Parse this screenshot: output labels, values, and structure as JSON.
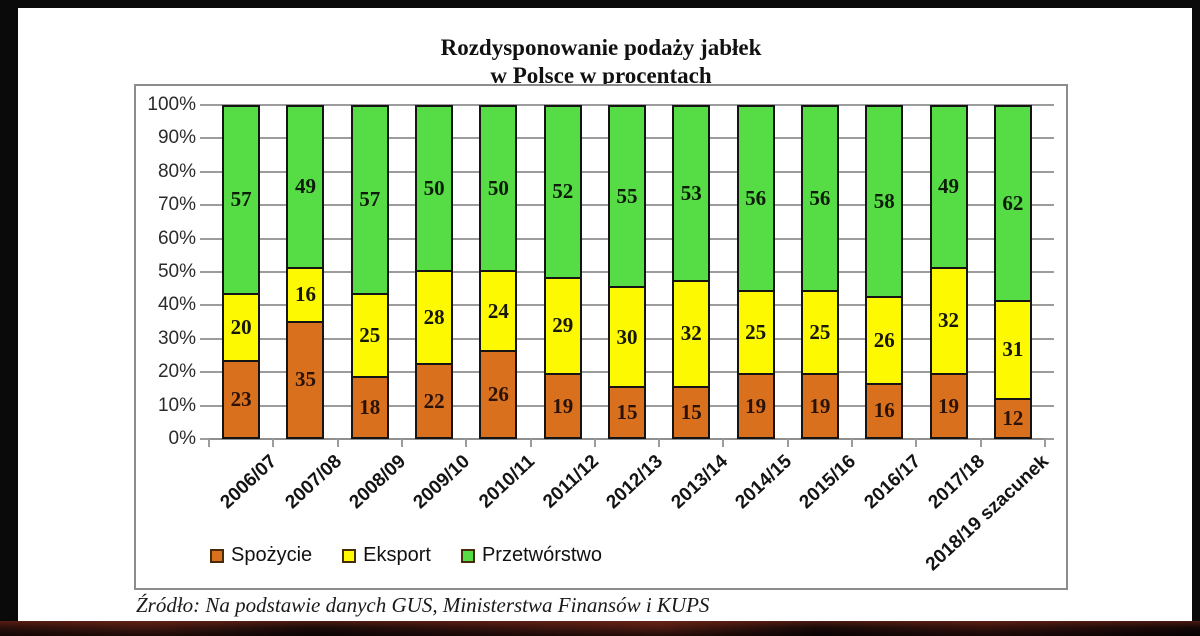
{
  "page": {
    "source": "Źródło: Na podstawie danych GUS, Ministerstwa Finansów i KUPS"
  },
  "chart_data": {
    "type": "bar",
    "stacked": true,
    "title": "Rozdysponowanie podaży jabłek",
    "subtitle": "w Polsce w procentach",
    "categories": [
      "2006/07",
      "2007/08",
      "2008/09",
      "2009/10",
      "2010/11",
      "2011/12",
      "2012/13",
      "2013/14",
      "2014/15",
      "2015/16",
      "2016/17",
      "2017/18",
      "2018/19 szacunek"
    ],
    "series": [
      {
        "name": "Spożycie",
        "color": "#d8701e",
        "label_color": "#2a1206",
        "values": [
          23,
          35,
          18,
          22,
          26,
          19,
          15,
          15,
          19,
          19,
          16,
          19,
          12
        ]
      },
      {
        "name": "Eksport",
        "color": "#fdf900",
        "label_color": "#171705",
        "values": [
          20,
          16,
          25,
          28,
          24,
          29,
          30,
          32,
          25,
          25,
          26,
          32,
          31
        ]
      },
      {
        "name": "Przetwórstwo",
        "color": "#56dc45",
        "label_color": "#0c1c08",
        "values": [
          57,
          49,
          57,
          50,
          50,
          52,
          55,
          53,
          56,
          56,
          58,
          49,
          62
        ]
      }
    ],
    "y_ticks": [
      "0%",
      "10%",
      "20%",
      "30%",
      "40%",
      "50%",
      "60%",
      "70%",
      "80%",
      "90%",
      "100%"
    ],
    "ylim": [
      0,
      100
    ],
    "xlabel": "",
    "ylabel": "",
    "grid": true,
    "legend_position": "bottom-left"
  }
}
